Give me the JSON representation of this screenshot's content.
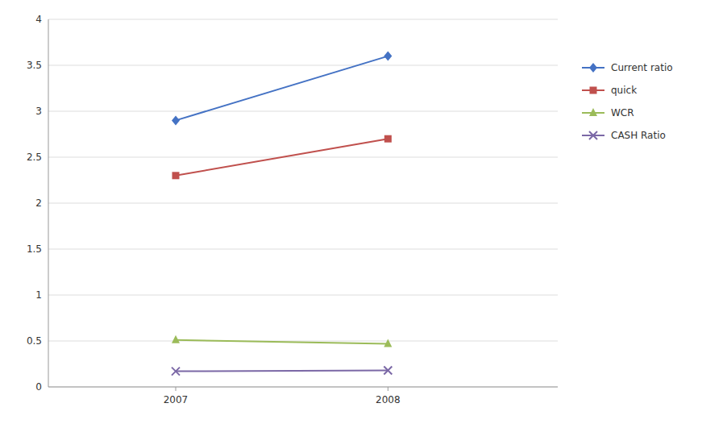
{
  "chart_data": {
    "type": "line",
    "x": [
      2007,
      2008
    ],
    "xlim": [
      2006.4,
      2008.8
    ],
    "xticks": [
      2007,
      2008
    ],
    "ylim": [
      0,
      4
    ],
    "yticks": [
      0,
      0.5,
      1,
      1.5,
      2,
      2.5,
      3,
      3.5,
      4
    ],
    "grid": true,
    "legend": "right",
    "series": [
      {
        "name": "Current ratio",
        "color": "#4472C4",
        "marker": "diamond",
        "values": [
          2.9,
          3.6
        ]
      },
      {
        "name": "quick",
        "color": "#C0504D",
        "marker": "square",
        "values": [
          2.3,
          2.7
        ]
      },
      {
        "name": "WCR",
        "color": "#9BBB59",
        "marker": "triangle",
        "values": [
          0.51,
          0.47
        ]
      },
      {
        "name": "CASH Ratio",
        "color": "#7B68A6",
        "marker": "x",
        "values": [
          0.17,
          0.18
        ]
      }
    ]
  }
}
